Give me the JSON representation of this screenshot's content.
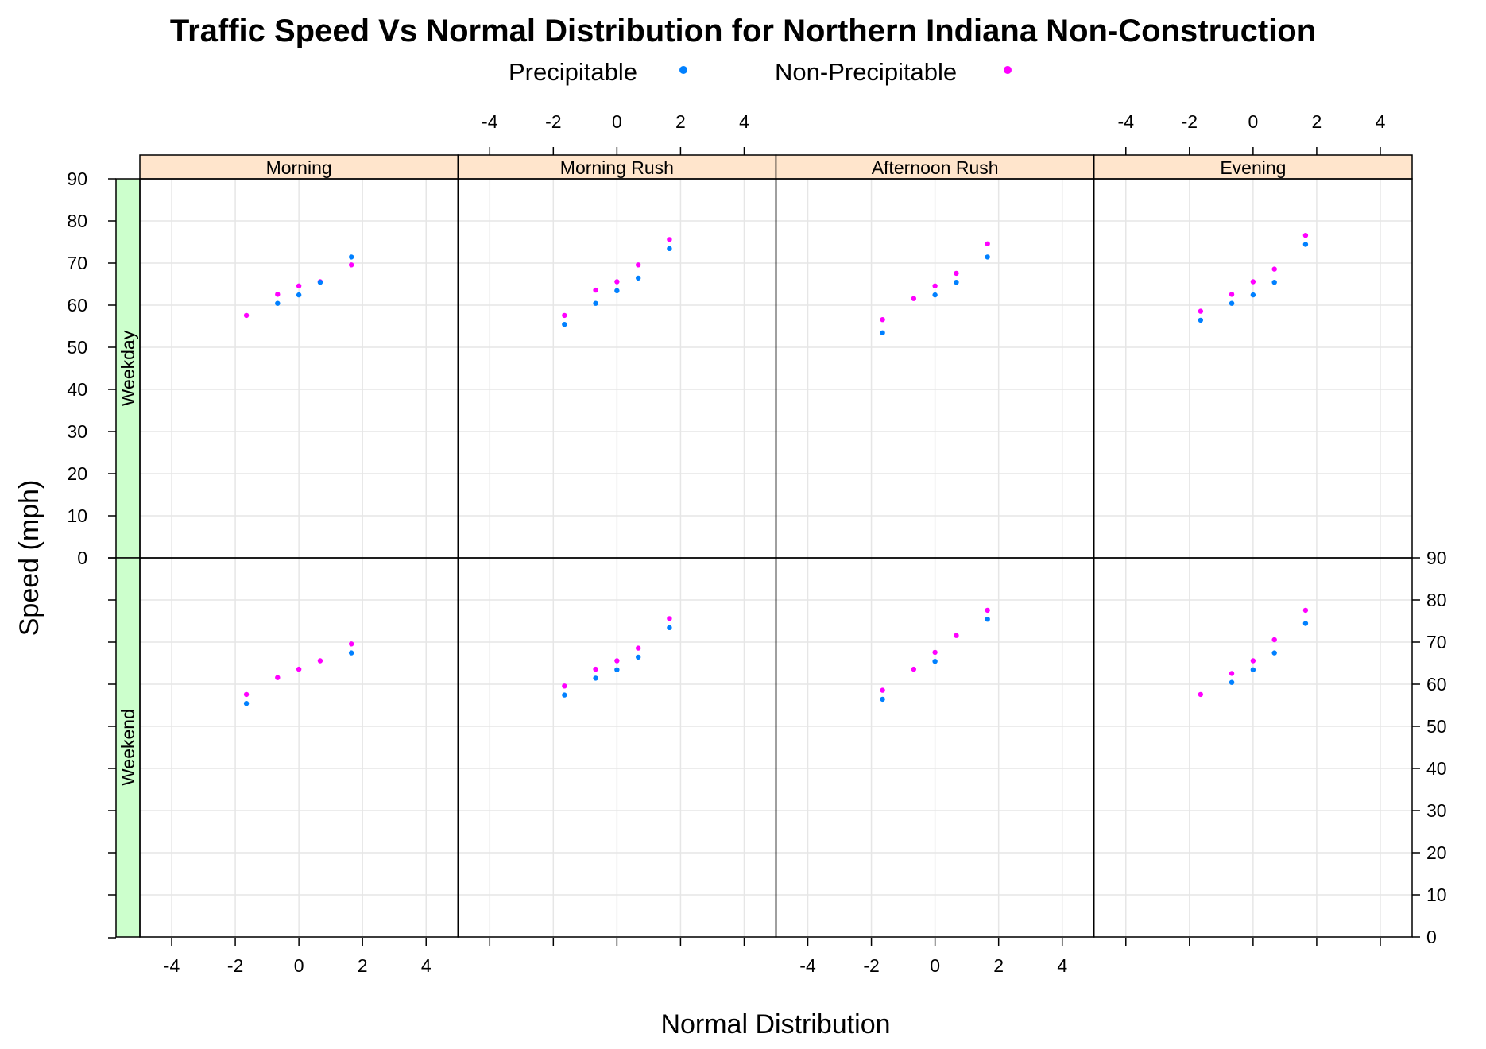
{
  "chart_data": {
    "type": "scatter",
    "title": "Traffic Speed Vs Normal Distribution for Northern Indiana Non-Construction",
    "xlabel": "Normal Distribution",
    "ylabel": "Speed (mph)",
    "xlim": [
      -5,
      5
    ],
    "ylim": [
      0,
      90
    ],
    "x_ticks": [
      -4,
      -2,
      0,
      2,
      4
    ],
    "y_ticks": [
      0,
      10,
      20,
      30,
      40,
      50,
      60,
      70,
      80,
      90
    ],
    "grid": true,
    "legend": [
      {
        "name": "Precipitable",
        "color": "#0080ff"
      },
      {
        "name": "Non-Precipitable",
        "color": "#ff00ff"
      }
    ],
    "legend_position": "top",
    "columns": [
      "Morning",
      "Morning Rush",
      "Afternoon Rush",
      "Evening"
    ],
    "rows": [
      "Weekday",
      "Weekend"
    ],
    "panels": [
      {
        "row": "Weekday",
        "col": "Morning",
        "series": [
          {
            "name": "Precipitable",
            "x": [
              -0.67,
              0,
              0.67,
              1.65
            ],
            "y": [
              61,
              63,
              66,
              72
            ]
          },
          {
            "name": "Non-Precipitable",
            "x": [
              -1.65,
              -0.67,
              0,
              0.67,
              1.65
            ],
            "y": [
              57,
              62,
              64,
              65,
              69
            ]
          }
        ]
      },
      {
        "row": "Weekday",
        "col": "Morning Rush",
        "series": [
          {
            "name": "Precipitable",
            "x": [
              -1.65,
              -0.67,
              0,
              0.67,
              1.65
            ],
            "y": [
              56,
              61,
              64,
              67,
              74
            ]
          },
          {
            "name": "Non-Precipitable",
            "x": [
              -1.65,
              -0.67,
              0,
              0.67,
              1.65
            ],
            "y": [
              57,
              63,
              65,
              69,
              75
            ]
          }
        ]
      },
      {
        "row": "Weekday",
        "col": "Afternoon Rush",
        "series": [
          {
            "name": "Precipitable",
            "x": [
              -1.65,
              0,
              0.67,
              1.65
            ],
            "y": [
              54,
              63,
              66,
              72
            ]
          },
          {
            "name": "Non-Precipitable",
            "x": [
              -1.65,
              -0.67,
              0,
              0.67,
              1.65
            ],
            "y": [
              56,
              61,
              64,
              67,
              74
            ]
          }
        ]
      },
      {
        "row": "Weekday",
        "col": "Evening",
        "series": [
          {
            "name": "Precipitable",
            "x": [
              -1.65,
              -0.67,
              0,
              0.67,
              1.65
            ],
            "y": [
              57,
              61,
              63,
              66,
              75
            ]
          },
          {
            "name": "Non-Precipitable",
            "x": [
              -1.65,
              -0.67,
              0,
              0.67,
              1.65
            ],
            "y": [
              58,
              62,
              65,
              68,
              76
            ]
          }
        ]
      },
      {
        "row": "Weekend",
        "col": "Morning",
        "series": [
          {
            "name": "Precipitable",
            "x": [
              -1.65,
              1.65
            ],
            "y": [
              56,
              68
            ]
          },
          {
            "name": "Non-Precipitable",
            "x": [
              -1.65,
              -0.67,
              0,
              0.67,
              1.65
            ],
            "y": [
              57,
              61,
              63,
              65,
              69
            ]
          }
        ]
      },
      {
        "row": "Weekend",
        "col": "Morning Rush",
        "series": [
          {
            "name": "Precipitable",
            "x": [
              -1.65,
              -0.67,
              0,
              0.67,
              1.65
            ],
            "y": [
              58,
              62,
              64,
              67,
              74
            ]
          },
          {
            "name": "Non-Precipitable",
            "x": [
              -1.65,
              -0.67,
              0,
              0.67,
              1.65
            ],
            "y": [
              59,
              63,
              65,
              68,
              75
            ]
          }
        ]
      },
      {
        "row": "Weekend",
        "col": "Afternoon Rush",
        "series": [
          {
            "name": "Precipitable",
            "x": [
              -1.65,
              0,
              1.65
            ],
            "y": [
              57,
              66,
              76
            ]
          },
          {
            "name": "Non-Precipitable",
            "x": [
              -1.65,
              -0.67,
              0,
              0.67,
              1.65
            ],
            "y": [
              58,
              63,
              67,
              71,
              77
            ]
          }
        ]
      },
      {
        "row": "Weekend",
        "col": "Evening",
        "series": [
          {
            "name": "Precipitable",
            "x": [
              -0.67,
              0,
              0.67,
              1.65
            ],
            "y": [
              61,
              64,
              68,
              75
            ]
          },
          {
            "name": "Non-Precipitable",
            "x": [
              -1.65,
              -0.67,
              0,
              0.67,
              1.65
            ],
            "y": [
              57,
              62,
              65,
              70,
              77
            ]
          }
        ]
      }
    ]
  }
}
